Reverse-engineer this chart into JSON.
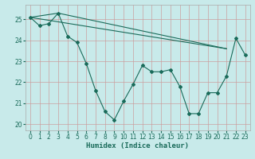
{
  "xlabel": "Humidex (Indice chaleur)",
  "bg_color": "#c8eaea",
  "line_color": "#1a6b5a",
  "grid_color": "#cc9999",
  "xlim": [
    -0.5,
    23.5
  ],
  "ylim": [
    19.7,
    25.7
  ],
  "xticks": [
    0,
    1,
    2,
    3,
    4,
    5,
    6,
    7,
    8,
    9,
    10,
    11,
    12,
    13,
    14,
    15,
    16,
    17,
    18,
    19,
    20,
    21,
    22,
    23
  ],
  "yticks": [
    20,
    21,
    22,
    23,
    24,
    25
  ],
  "series1_y": [
    25.1,
    24.7,
    24.8,
    25.3,
    24.2,
    23.9,
    22.9,
    21.6,
    20.6,
    20.2,
    21.1,
    21.9,
    22.8,
    22.5,
    22.5,
    22.6,
    21.8,
    20.5,
    20.5,
    21.5,
    21.5,
    22.3,
    24.1,
    23.3
  ],
  "trend1": {
    "x": [
      0,
      21
    ],
    "y": [
      25.1,
      23.6
    ]
  },
  "trend2": {
    "x": [
      3,
      21
    ],
    "y": [
      25.3,
      23.6
    ]
  },
  "connect_top": {
    "x": [
      0,
      3
    ],
    "y": [
      25.1,
      25.3
    ]
  }
}
